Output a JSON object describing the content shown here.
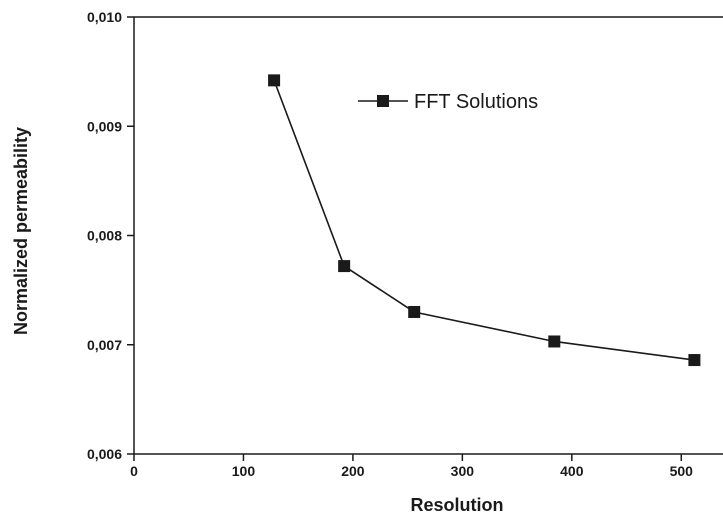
{
  "chart_data": {
    "type": "line",
    "title": "",
    "xlabel": "Resolution",
    "ylabel": "Normalized permeability",
    "xlim": [
      0,
      550
    ],
    "ylim": [
      0.006,
      0.01
    ],
    "x_ticks": [
      0,
      100,
      200,
      300,
      400,
      500
    ],
    "x_tick_labels": [
      "0",
      "100",
      "200",
      "300",
      "400",
      "500"
    ],
    "y_ticks": [
      0.006,
      0.007,
      0.008,
      0.009,
      0.01
    ],
    "y_tick_labels": [
      "0,006",
      "0,007",
      "0,008",
      "0,009",
      "0,010"
    ],
    "grid": false,
    "legend_position": "top-right",
    "series": [
      {
        "name": "FFT Solutions",
        "marker": "square",
        "color": "#1a1a1a",
        "x": [
          128,
          192,
          256,
          384,
          512
        ],
        "y": [
          0.00942,
          0.00772,
          0.0073,
          0.00703,
          0.00686
        ]
      }
    ]
  }
}
